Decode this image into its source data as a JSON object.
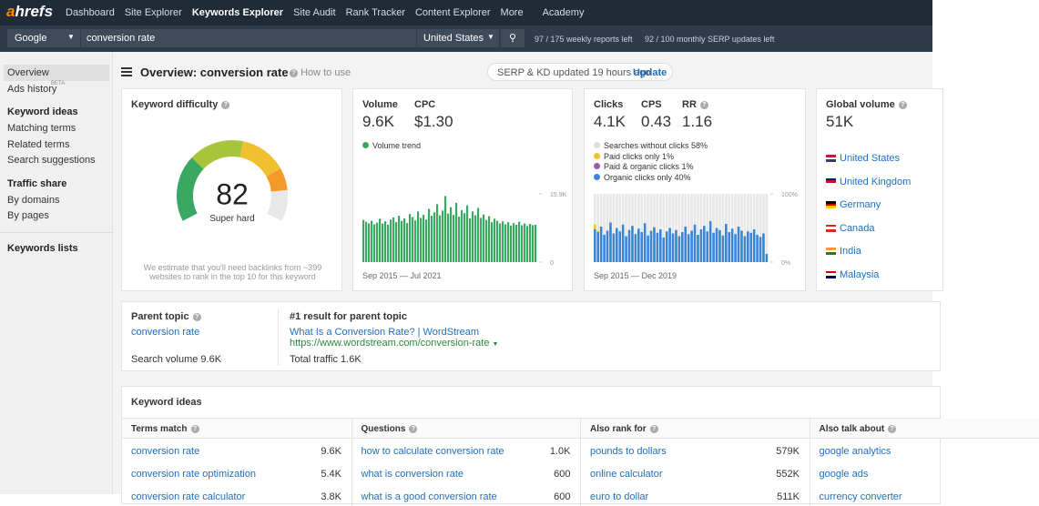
{
  "nav": {
    "logo": "ahrefs",
    "items": [
      "Dashboard",
      "Site Explorer",
      "Keywords Explorer",
      "Site Audit",
      "Rank Tracker",
      "Content Explorer",
      "More",
      "Academy"
    ],
    "active": 2
  },
  "search": {
    "engine": "Google",
    "query": "conversion rate",
    "country": "United States",
    "weekly": "97 / 175 weekly reports left",
    "monthly": "92 / 100 monthly SERP updates left"
  },
  "sidebar": {
    "top": [
      "Overview",
      "Ads history"
    ],
    "beta": "BETA",
    "sections": [
      {
        "title": "Keyword ideas",
        "items": [
          "Matching terms",
          "Related terms",
          "Search suggestions"
        ]
      },
      {
        "title": "Traffic share",
        "items": [
          "By domains",
          "By pages"
        ]
      },
      {
        "title": "Keywords lists"
      }
    ]
  },
  "header": {
    "title": "Overview: conversion rate",
    "how_to": "How to use",
    "serp_note": "SERP & KD updated 19 hours ago",
    "update": "Update"
  },
  "kd": {
    "label": "Keyword difficulty",
    "value": 82,
    "rating": "Super hard",
    "note": "We estimate that you'll need backlinks from ~399 websites to rank in the top 10 for this keyword"
  },
  "volume": {
    "label": "Volume",
    "value": "9.6K",
    "cpc_label": "CPC",
    "cpc": "$1.30",
    "legend": "Volume trend",
    "color": "#3aa862",
    "range": "Sep 2015 — Jul 2021",
    "yticks": [
      0,
      {
        "value": 15900,
        "label": "15.9K"
      }
    ],
    "values": [
      9800,
      9400,
      9000,
      9600,
      8800,
      9200,
      10100,
      9000,
      9500,
      8700,
      9900,
      10400,
      9300,
      10800,
      9600,
      10200,
      9100,
      11200,
      10500,
      9700,
      11800,
      10300,
      11000,
      9900,
      12400,
      10800,
      11600,
      13500,
      10900,
      12000,
      15400,
      11300,
      12800,
      11000,
      13800,
      10600,
      12100,
      11400,
      13200,
      10200,
      11800,
      10900,
      12600,
      10300,
      11100,
      9800,
      10700,
      9300,
      10100,
      9600,
      9000,
      9500,
      8800,
      9300,
      8500,
      9100,
      8700,
      9400,
      8600,
      9000,
      8400,
      8900,
      8600,
      8700
    ]
  },
  "clicks": {
    "label": "Clicks",
    "value": "4.1K",
    "cps_label": "CPS",
    "cps": "0.43",
    "rr_label": "RR",
    "rr": "1.16",
    "legend": [
      {
        "text": "Searches without clicks 58%",
        "color": "#dddddd"
      },
      {
        "text": "Paid clicks only 1%",
        "color": "#f2c12e"
      },
      {
        "text": "Paid & organic clicks 1%",
        "color": "#9b59b6"
      },
      {
        "text": "Organic clicks only 40%",
        "color": "#3d86d3"
      }
    ],
    "range": "Sep 2015 — Dec 2019",
    "yticks": [
      {
        "value": 0,
        "label": "0%"
      },
      {
        "value": 100,
        "label": "100%"
      }
    ],
    "organic": [
      48,
      44,
      52,
      40,
      46,
      58,
      42,
      50,
      45,
      55,
      38,
      47,
      53,
      41,
      49,
      44,
      57,
      39,
      46,
      51,
      43,
      48,
      36,
      45,
      50,
      42,
      47,
      38,
      44,
      52,
      41,
      46,
      55,
      40,
      48,
      53,
      45,
      60,
      43,
      50,
      47,
      39,
      56,
      44,
      49,
      41,
      52,
      46,
      38,
      45,
      43,
      48,
      40,
      37,
      42,
      12
    ],
    "paid": [
      7,
      2,
      0,
      0,
      0,
      0,
      0,
      0,
      0,
      0,
      0,
      0,
      0,
      0,
      0,
      0,
      0,
      0,
      0,
      0,
      0,
      0,
      0,
      0,
      0,
      0,
      0,
      0,
      0,
      0,
      0,
      0,
      0,
      0,
      0,
      0,
      0,
      0,
      0,
      0,
      0,
      0,
      0,
      0,
      0,
      0,
      0,
      0,
      0,
      0,
      0,
      0,
      0,
      0,
      0,
      0
    ]
  },
  "global": {
    "label": "Global volume",
    "value": "51K",
    "countries": [
      "United States",
      "United Kingdom",
      "Germany",
      "Canada",
      "India",
      "Malaysia"
    ]
  },
  "parent": {
    "label": "Parent topic",
    "topic": "conversion rate",
    "search_volume": "Search volume 9.6K",
    "result_label": "#1 result for parent topic",
    "result_title": "What Is a Conversion Rate? | WordStream",
    "result_url": "https://www.wordstream.com/conversion-rate",
    "traffic": "Total traffic 1.6K"
  },
  "ideas": {
    "title": "Keyword ideas",
    "columns": [
      {
        "header": "Terms match",
        "rows": [
          {
            "keyword": "conversion rate",
            "volume": "9.6K"
          },
          {
            "keyword": "conversion rate optimization",
            "volume": "5.4K"
          },
          {
            "keyword": "conversion rate calculator",
            "volume": "3.8K"
          }
        ]
      },
      {
        "header": "Questions",
        "rows": [
          {
            "keyword": "how to calculate conversion rate",
            "volume": "1.0K"
          },
          {
            "keyword": "what is conversion rate",
            "volume": "600"
          },
          {
            "keyword": "what is a good conversion rate",
            "volume": "600"
          }
        ]
      },
      {
        "header": "Also rank for",
        "rows": [
          {
            "keyword": "pounds to dollars",
            "volume": "579K"
          },
          {
            "keyword": "online calculator",
            "volume": "552K"
          },
          {
            "keyword": "euro to dollar",
            "volume": "511K"
          }
        ]
      },
      {
        "header": "Also talk about",
        "rows": [
          {
            "keyword": "google analytics"
          },
          {
            "keyword": "google ads"
          },
          {
            "keyword": "currency converter"
          }
        ]
      }
    ]
  }
}
